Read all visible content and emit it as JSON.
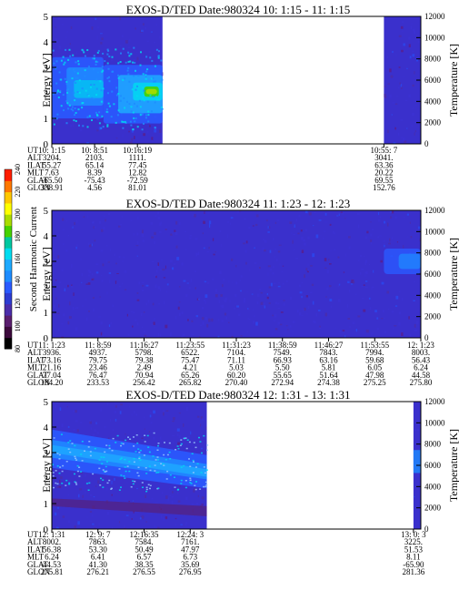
{
  "chart_data": {
    "type": "heatmap",
    "colorbar": {
      "label": "Second Harmonic Current",
      "range": [
        80,
        240
      ],
      "ticks": [
        "80",
        "100",
        "120",
        "140",
        "160",
        "180",
        "200",
        "220",
        "240"
      ],
      "colors": [
        "#000000",
        "#3c0a3c",
        "#5a1e6e",
        "#4b2daa",
        "#2d3cd2",
        "#2a5aff",
        "#1e8cff",
        "#1eaaff",
        "#00dcf0",
        "#00c8a0",
        "#46d200",
        "#aadc00",
        "#ffff00",
        "#ffc800",
        "#ff7800",
        "#ff1e00"
      ]
    },
    "panels": [
      {
        "title": "EXOS-D/TED   Date:980324  10: 1:15 - 11: 1:15",
        "ylabel": "Energy [eV]",
        "ylim": [
          0,
          5
        ],
        "yticks": [
          "0",
          "1",
          "2",
          "3",
          "4",
          "5"
        ],
        "y2label": "Temperature [K]",
        "y2lim": [
          0,
          12000
        ],
        "y2ticks": [
          "0",
          "2000",
          "4000",
          "6000",
          "8000",
          "10000",
          "12000"
        ],
        "data_segments": [
          [
            0,
            0.3
          ],
          [
            0.9,
            1.0
          ]
        ],
        "ephemeris": {
          "labels": [
            "UT",
            "ALT",
            "ILAT",
            "MLT",
            "GLAT",
            "GLON"
          ],
          "columns": [
            {
              "pos": 0.0,
              "values": [
                "10: 1:15",
                "3204.",
                "55.27",
                "7.63",
                "-65.50",
                "338.91"
              ]
            },
            {
              "pos": 0.116,
              "values": [
                "10: 8:51",
                "2103.",
                "65.14",
                "8.39",
                "-75.43",
                "4.56"
              ]
            },
            {
              "pos": 0.232,
              "values": [
                "10:16:19",
                "1111.",
                "77.45",
                "12.82",
                "-72.59",
                "81.01"
              ]
            },
            {
              "pos": 0.9,
              "values": [
                "10:55: 7",
                "3041.",
                "63.36",
                "20.22",
                "69.55",
                "152.76"
              ]
            }
          ]
        }
      },
      {
        "title": "EXOS-D/TED   Date:980324  11: 1:23 - 12: 1:23",
        "ylabel": "Energy [eV]",
        "ylim": [
          0,
          5
        ],
        "yticks": [
          "0",
          "1",
          "2",
          "3",
          "4",
          "5"
        ],
        "y2label": "Temperature [K]",
        "y2lim": [
          0,
          12000
        ],
        "y2ticks": [
          "0",
          "2000",
          "4000",
          "6000",
          "8000",
          "10000",
          "12000"
        ],
        "data_segments": [
          [
            0,
            1.0
          ]
        ],
        "ephemeris": {
          "labels": [
            "UT",
            "ALT",
            "ILAT",
            "MLT",
            "GLAT",
            "GLON"
          ],
          "columns": [
            {
              "pos": 0.0,
              "values": [
                "11: 1:23",
                "3936.",
                "73.16",
                "21.16",
                "77.04",
                "184.20"
              ]
            },
            {
              "pos": 0.125,
              "values": [
                "11: 8:59",
                "4937.",
                "79.75",
                "23.46",
                "76.47",
                "233.53"
              ]
            },
            {
              "pos": 0.25,
              "values": [
                "11:16:27",
                "5798.",
                "79.38",
                "2.49",
                "70.94",
                "256.42"
              ]
            },
            {
              "pos": 0.375,
              "values": [
                "11:23:55",
                "6522.",
                "75.47",
                "4.21",
                "65.26",
                "265.82"
              ]
            },
            {
              "pos": 0.5,
              "values": [
                "11:31:23",
                "7104.",
                "71.11",
                "5.03",
                "60.20",
                "270.40"
              ]
            },
            {
              "pos": 0.625,
              "values": [
                "11:38:59",
                "7549.",
                "66.93",
                "5.50",
                "55.65",
                "272.94"
              ]
            },
            {
              "pos": 0.75,
              "values": [
                "11:46:27",
                "7843.",
                "63.16",
                "5.81",
                "51.64",
                "274.38"
              ]
            },
            {
              "pos": 0.875,
              "values": [
                "11:53:55",
                "7994.",
                "59.68",
                "6.05",
                "47.98",
                "275.25"
              ]
            },
            {
              "pos": 1.0,
              "values": [
                "12: 1:23",
                "8003.",
                "56.43",
                "6.24",
                "44.58",
                "275.80"
              ]
            }
          ]
        }
      },
      {
        "title": "EXOS-D/TED   Date:980324  12: 1:31 - 13: 1:31",
        "ylabel": "Energy [eV]",
        "ylim": [
          0,
          5
        ],
        "yticks": [
          "0",
          "1",
          "2",
          "3",
          "4",
          "5"
        ],
        "y2label": "Temperature [K]",
        "y2lim": [
          0,
          12000
        ],
        "y2ticks": [
          "0",
          "2000",
          "4000",
          "6000",
          "8000",
          "10000",
          "12000"
        ],
        "data_segments": [
          [
            0,
            0.42
          ],
          [
            0.98,
            1.0
          ]
        ],
        "ephemeris": {
          "labels": [
            "UT",
            "ALT",
            "ILAT",
            "MLT",
            "GLAT",
            "GLON"
          ],
          "columns": [
            {
              "pos": 0.0,
              "values": [
                "12: 1:31",
                "8002.",
                "56.38",
                "6.24",
                "44.53",
                "275.81"
              ]
            },
            {
              "pos": 0.125,
              "values": [
                "12: 9: 7",
                "7863.",
                "53.30",
                "6.41",
                "41.30",
                "276.21"
              ]
            },
            {
              "pos": 0.25,
              "values": [
                "12:16:35",
                "7584.",
                "50.49",
                "6.57",
                "38.35",
                "276.55"
              ]
            },
            {
              "pos": 0.375,
              "values": [
                "12:24: 3",
                "7161.",
                "47.97",
                "6.73",
                "35.69",
                "276.95"
              ]
            },
            {
              "pos": 0.98,
              "values": [
                "13: 0: 3",
                "3225.",
                "51.53",
                "8.11",
                "-65.90",
                "281.36"
              ]
            }
          ]
        }
      }
    ]
  }
}
